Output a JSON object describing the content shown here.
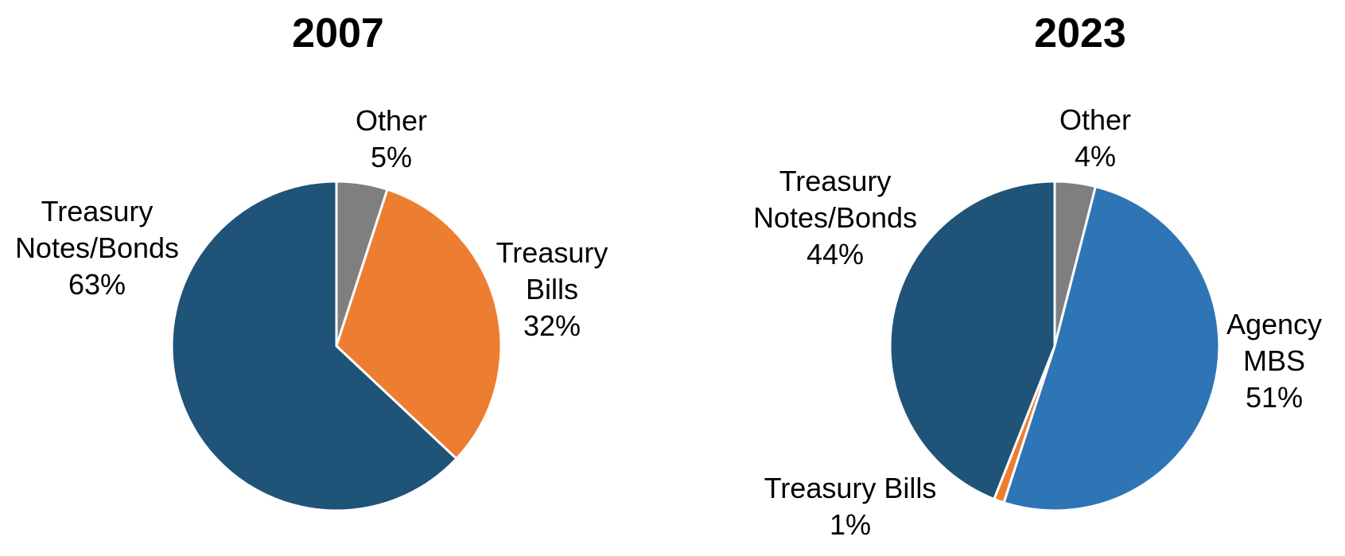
{
  "page": {
    "background_color": "#FFFFFF",
    "text_color": "#000000"
  },
  "chart_data": [
    {
      "type": "pie",
      "title": "2007",
      "labels": [
        "Other",
        "Treasury Bills",
        "Treasury Notes/Bonds"
      ],
      "values": [
        5,
        32,
        63
      ],
      "unit": "%",
      "colors": [
        "#7F7F7F",
        "#ED7D31",
        "#1F5378"
      ],
      "slice_border_color": "#FFFFFF",
      "start_angle_deg": 0,
      "direction": "clockwise",
      "legend": "none",
      "callouts": [
        {
          "slice": "Other",
          "lines": [
            "Other",
            "5%"
          ]
        },
        {
          "slice": "Treasury Bills",
          "lines": [
            "Treasury",
            "Bills",
            "32%"
          ]
        },
        {
          "slice": "Treasury Notes/Bonds",
          "lines": [
            "Treasury",
            "Notes/Bonds",
            "63%"
          ]
        }
      ]
    },
    {
      "type": "pie",
      "title": "2023",
      "labels": [
        "Other",
        "Agency MBS",
        "Treasury Bills",
        "Treasury Notes/Bonds"
      ],
      "values": [
        4,
        51,
        1,
        44
      ],
      "unit": "%",
      "colors": [
        "#7F7F7F",
        "#2E75B6",
        "#ED7D31",
        "#1F5378"
      ],
      "slice_border_color": "#FFFFFF",
      "start_angle_deg": 0,
      "direction": "clockwise",
      "legend": "none",
      "callouts": [
        {
          "slice": "Other",
          "lines": [
            "Other",
            "4%"
          ]
        },
        {
          "slice": "Treasury Notes/Bonds",
          "lines": [
            "Treasury",
            "Notes/Bonds",
            "44%"
          ]
        },
        {
          "slice": "Agency MBS",
          "lines": [
            "Agency",
            "MBS",
            "51%"
          ]
        },
        {
          "slice": "Treasury Bills",
          "lines": [
            "Treasury Bills",
            "1%"
          ]
        }
      ]
    }
  ]
}
